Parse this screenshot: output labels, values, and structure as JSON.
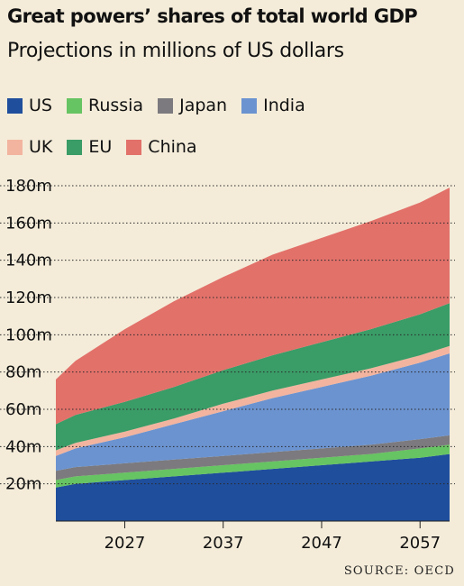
{
  "chart_data": {
    "type": "area",
    "stacked": true,
    "title": "Great powers’ shares of total world GDP",
    "subtitle": "Projections in millions of US dollars",
    "source": "SOURCE: OECD",
    "x": [
      2020,
      2022,
      2027,
      2032,
      2037,
      2042,
      2047,
      2052,
      2057,
      2060
    ],
    "xticks": [
      2027,
      2037,
      2047,
      2057
    ],
    "xlim": [
      2020,
      2060
    ],
    "ylim": [
      0,
      180
    ],
    "yticks": [
      20,
      40,
      60,
      80,
      100,
      120,
      140,
      160,
      180
    ],
    "ytick_labels": [
      "20m",
      "40m",
      "60m",
      "80m",
      "100m",
      "120m",
      "140m",
      "160m",
      "180m"
    ],
    "grid": true,
    "legend_position": "top-left",
    "series": [
      {
        "name": "US",
        "color": "#1f4e9c",
        "values": [
          18,
          20,
          22,
          24,
          26,
          28,
          30,
          32,
          34,
          36
        ]
      },
      {
        "name": "Russia",
        "color": "#66c462",
        "values": [
          4,
          4,
          4,
          4,
          4,
          4,
          4,
          4,
          5,
          5
        ]
      },
      {
        "name": "Japan",
        "color": "#7c7a7e",
        "values": [
          5,
          5,
          5,
          5,
          5,
          5,
          5,
          5,
          5,
          5
        ]
      },
      {
        "name": "India",
        "color": "#6b93d0",
        "values": [
          8,
          10,
          14,
          19,
          24,
          29,
          33,
          37,
          41,
          44
        ]
      },
      {
        "name": "UK",
        "color": "#f2b49f",
        "values": [
          3,
          3,
          3,
          3,
          4,
          4,
          4,
          4,
          4,
          4
        ]
      },
      {
        "name": "EU",
        "color": "#3a9c67",
        "values": [
          14,
          15,
          16,
          17,
          18,
          19,
          20,
          21,
          22,
          23
        ]
      },
      {
        "name": "China",
        "color": "#e2716a",
        "values": [
          24,
          29,
          39,
          46,
          50,
          54,
          56,
          58,
          60,
          62
        ]
      }
    ]
  }
}
